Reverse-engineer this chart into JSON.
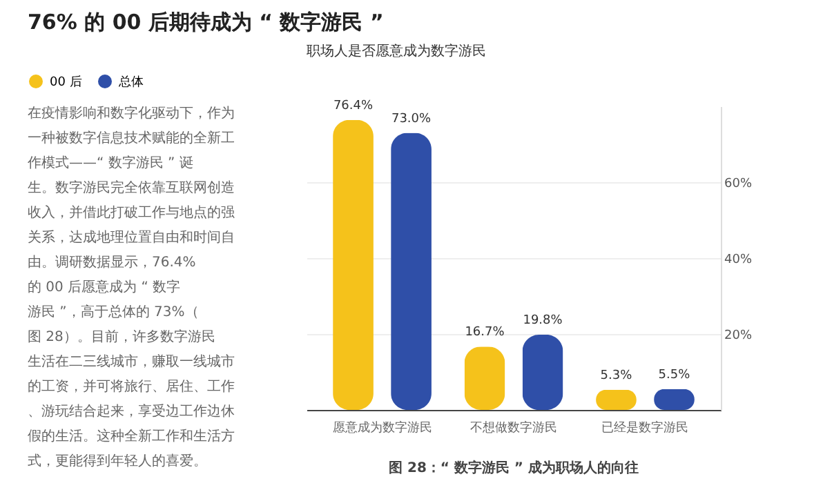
{
  "chart_data": {
    "type": "bar",
    "title": "76% 的 00 后期待成为 “ 数字游民 ”",
    "subtitle": "职场人是否愿意成为数字游民",
    "annotations": [
      "在疫情影响和数字化驱动下，作为一种被数字信息技术赋能的全新工作模式——“ 数字游民 ” 诞生。数字游民完全依靠互联网创造收入，并借此打破工作与地点的强关系，达成地理位置自由和时间自由。调研数据显示，76.4% 的 00 后愿意成为 “ 数字游民 ”，高于总体的 73%（图 28）。目前，许多数字游民生活在二三线城市，赚取一线城市的工资，并可将旅行、居住、工作、游玩结合起来，享受边工作边休假的生活。这种全新工作和生活方式，更能得到年轻人的喜爱。",
      "图 28：“ 数字游民 ” 成为职场人的向往"
    ],
    "categories": [
      "愿意成为数字游民",
      "不想做数字游民",
      "已经是数字游民"
    ],
    "series": [
      {
        "name": "00 后",
        "color": "#f5c21b",
        "values": [
          76.4,
          16.7,
          5.3
        ]
      },
      {
        "name": "总体",
        "color": "#2f4fa8",
        "values": [
          73.0,
          19.8,
          5.5
        ]
      }
    ],
    "ylim": [
      0,
      80
    ],
    "yticks": [
      {
        "value": 20,
        "label": "20%"
      },
      {
        "value": 40,
        "label": "40%"
      },
      {
        "value": 60,
        "label": "60%"
      }
    ],
    "value_labels": [
      "76.4%",
      "16.7%",
      "5.3%",
      "73.0%",
      "19.8%",
      "5.5%"
    ],
    "grid": "y",
    "legend": "top left"
  }
}
